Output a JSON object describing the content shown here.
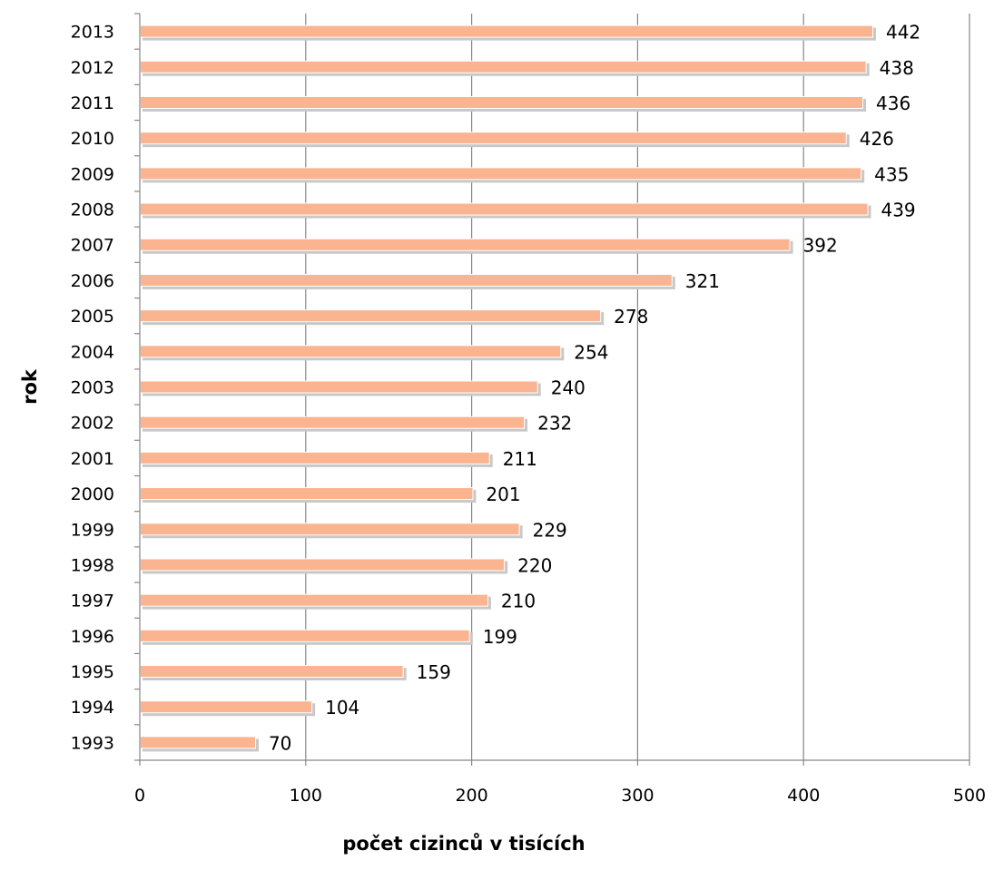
{
  "chart_data": {
    "type": "bar",
    "orientation": "horizontal",
    "categories": [
      "1993",
      "1994",
      "1995",
      "1996",
      "1997",
      "1998",
      "1999",
      "2000",
      "2001",
      "2002",
      "2003",
      "2004",
      "2005",
      "2006",
      "2007",
      "2008",
      "2009",
      "2010",
      "2011",
      "2012",
      "2013"
    ],
    "values": [
      70,
      104,
      159,
      199,
      210,
      220,
      229,
      201,
      211,
      232,
      240,
      254,
      278,
      321,
      392,
      439,
      435,
      426,
      436,
      438,
      442
    ],
    "data_labels": [
      "70",
      "104",
      "159",
      "199",
      "210",
      "220",
      "229",
      "201",
      "211",
      "232",
      "240",
      "254",
      "278",
      "321",
      "392",
      "439",
      "435",
      "426",
      "436",
      "438",
      "442"
    ],
    "xlabel": "počet cizinců v tisících",
    "ylabel": "rok",
    "xlim": [
      0,
      500
    ],
    "x_ticks": [
      "0",
      "100",
      "200",
      "300",
      "400",
      "500"
    ],
    "grid": "vertical",
    "legend": "none",
    "bar_color": "#FAB490",
    "bar_shadow_color": "#C8C8C8"
  }
}
